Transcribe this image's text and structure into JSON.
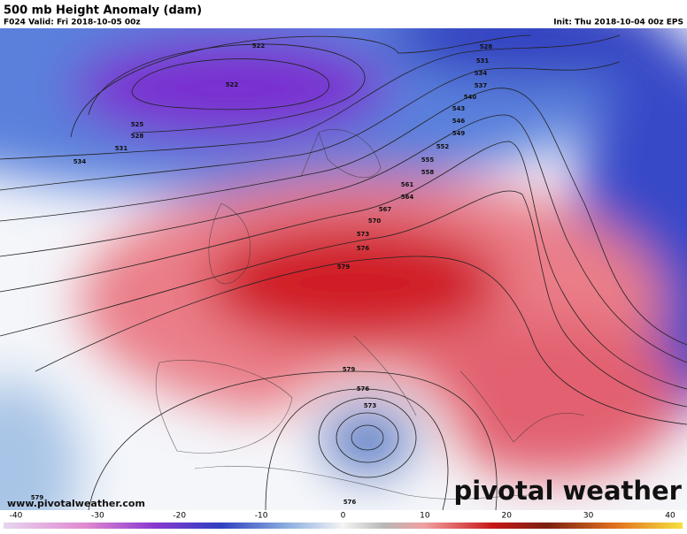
{
  "header": {
    "title": "500 mb Height Anomaly (dam)",
    "valid": "F024 Valid: Fri 2018-10-05 00z",
    "init": "Init: Thu 2018-10-04 00z EPS"
  },
  "contour_labels": [
    "522",
    "522",
    "525",
    "528",
    "531",
    "534",
    "528",
    "531",
    "534",
    "537",
    "540",
    "543",
    "546",
    "549",
    "552",
    "555",
    "558",
    "561",
    "564",
    "567",
    "570",
    "573",
    "576",
    "579",
    "579",
    "576",
    "573",
    "576",
    "579"
  ],
  "footer": {
    "website": "www.pivotalweather.com",
    "brand": "pivotal weather"
  },
  "colorbar": {
    "range": [
      -40,
      40
    ],
    "ticks": [
      -40,
      -30,
      -20,
      -10,
      0,
      10,
      20,
      30,
      40
    ]
  }
}
